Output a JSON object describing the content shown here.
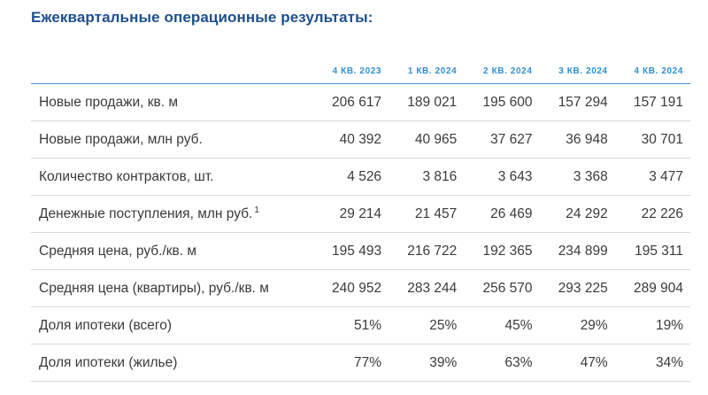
{
  "title": "Ежеквартальные операционные результаты:",
  "columns": [
    "4 КВ. 2023",
    "1 КВ. 2024",
    "2 КВ. 2024",
    "3 КВ. 2024",
    "4 КВ. 2024"
  ],
  "rows": [
    {
      "label": "Новые продажи, кв. м",
      "sup": "",
      "values": [
        "206 617",
        "189 021",
        "195 600",
        "157 294",
        "157 191"
      ]
    },
    {
      "label": "Новые продажи, млн руб.",
      "sup": "",
      "values": [
        "40 392",
        "40 965",
        "37 627",
        "36 948",
        "30 701"
      ]
    },
    {
      "label": "Количество контрактов, шт.",
      "sup": "",
      "values": [
        "4 526",
        "3 816",
        "3 643",
        "3 368",
        "3 477"
      ]
    },
    {
      "label": "Денежные поступления, млн руб.",
      "sup": "1",
      "values": [
        "29 214",
        "21 457",
        "26 469",
        "24 292",
        "22 226"
      ]
    },
    {
      "label": "Средняя цена, руб./кв. м",
      "sup": "",
      "values": [
        "195 493",
        "216 722",
        "192 365",
        "234 899",
        "195 311"
      ]
    },
    {
      "label": "Средняя цена (квартиры), руб./кв. м",
      "sup": "",
      "values": [
        "240 952",
        "283 244",
        "256 570",
        "293 225",
        "289 904"
      ]
    },
    {
      "label": "Доля ипотеки (всего)",
      "sup": "",
      "values": [
        "51%",
        "25%",
        "45%",
        "29%",
        "19%"
      ]
    },
    {
      "label": "Доля ипотеки (жилье)",
      "sup": "",
      "values": [
        "77%",
        "39%",
        "63%",
        "47%",
        "34%"
      ]
    }
  ],
  "colors": {
    "title": "#1d4f8f",
    "header": "#2f8fd0",
    "header_rule": "#4c8fc9",
    "row_rule": "#d9d9d9"
  }
}
